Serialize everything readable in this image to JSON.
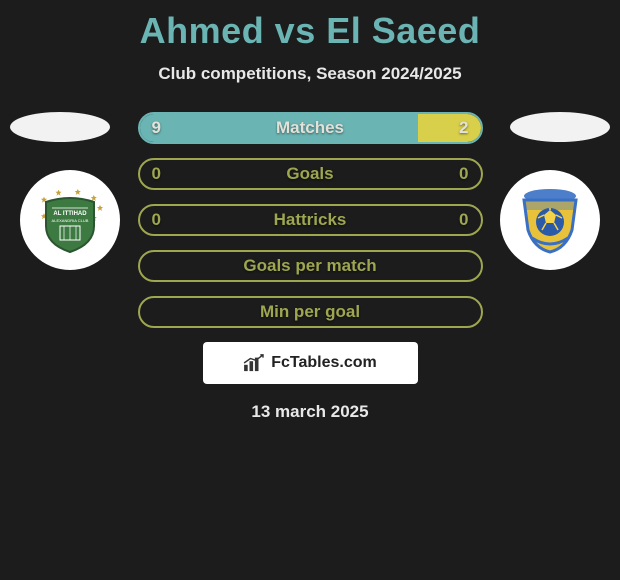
{
  "title": "Ahmed vs El Saeed",
  "subtitle": "Club competitions, Season 2024/2025",
  "date": "13 march 2025",
  "attribution": "FcTables.com",
  "colors": {
    "background": "#1c1c1c",
    "title": "#6bb4b4",
    "text_light": "#e8e8e8",
    "player1_fill": "#6bb4b4",
    "player2_fill": "#d8cf4a",
    "neutral_fill": "#9ea64f",
    "bar_text": "#e2e2d8"
  },
  "player1": {
    "name": "Ahmed",
    "club_badge": {
      "bg": "#ffffff",
      "shield": "#3d7a42",
      "stars": "#c9a03a",
      "text": "AL ITTIHAD"
    }
  },
  "player2": {
    "name": "El Saeed",
    "club_badge": {
      "bg": "#ffffff",
      "shield": "#e8c23a",
      "ball": "#2a5aa8",
      "trim": "#3a70c4"
    }
  },
  "stats": [
    {
      "label": "Matches",
      "left_value": "9",
      "right_value": "2",
      "left_pct": 81.8,
      "right_pct": 18.2,
      "left_color": "#6bb4b4",
      "right_color": "#d8cf4a",
      "border_color": "#6bb4b4",
      "label_color": "#e2e2d8",
      "value_color": "#e2e2d8"
    },
    {
      "label": "Goals",
      "left_value": "0",
      "right_value": "0",
      "left_pct": 0,
      "right_pct": 0,
      "left_color": "#6bb4b4",
      "right_color": "#d8cf4a",
      "border_color": "#9ea64f",
      "label_color": "#9ea64f",
      "value_color": "#9ea64f"
    },
    {
      "label": "Hattricks",
      "left_value": "0",
      "right_value": "0",
      "left_pct": 0,
      "right_pct": 0,
      "left_color": "#6bb4b4",
      "right_color": "#d8cf4a",
      "border_color": "#9ea64f",
      "label_color": "#9ea64f",
      "value_color": "#9ea64f"
    },
    {
      "label": "Goals per match",
      "left_value": "",
      "right_value": "",
      "left_pct": 0,
      "right_pct": 0,
      "left_color": "#6bb4b4",
      "right_color": "#d8cf4a",
      "border_color": "#9ea64f",
      "label_color": "#9ea64f",
      "value_color": "#9ea64f"
    },
    {
      "label": "Min per goal",
      "left_value": "",
      "right_value": "",
      "left_pct": 0,
      "right_pct": 0,
      "left_color": "#6bb4b4",
      "right_color": "#d8cf4a",
      "border_color": "#9ea64f",
      "label_color": "#9ea64f",
      "value_color": "#9ea64f"
    }
  ]
}
